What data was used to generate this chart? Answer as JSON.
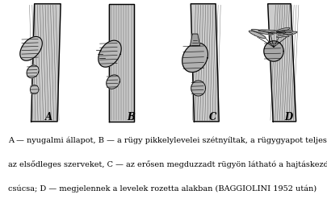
{
  "background_color": "#ffffff",
  "caption_lines": [
    "A — nyugalmi állapot, B — a rügy pikkelylevelei szétnyíltak, a rügygyapot teljesen fedi",
    "az elsődleges szerveket, C — az erősen megduzzadt rügyön látható a hajtáskezdemény",
    "csúcsa; D — megjelennek a levelek rozetta alakban (BAGGIOLINI 1952 után)"
  ],
  "labels": [
    "A",
    "B",
    "C",
    "D"
  ],
  "figsize": [
    4.06,
    2.52
  ],
  "dpi": 100,
  "caption_fontsize": 7.0,
  "label_fontsize": 8.5
}
